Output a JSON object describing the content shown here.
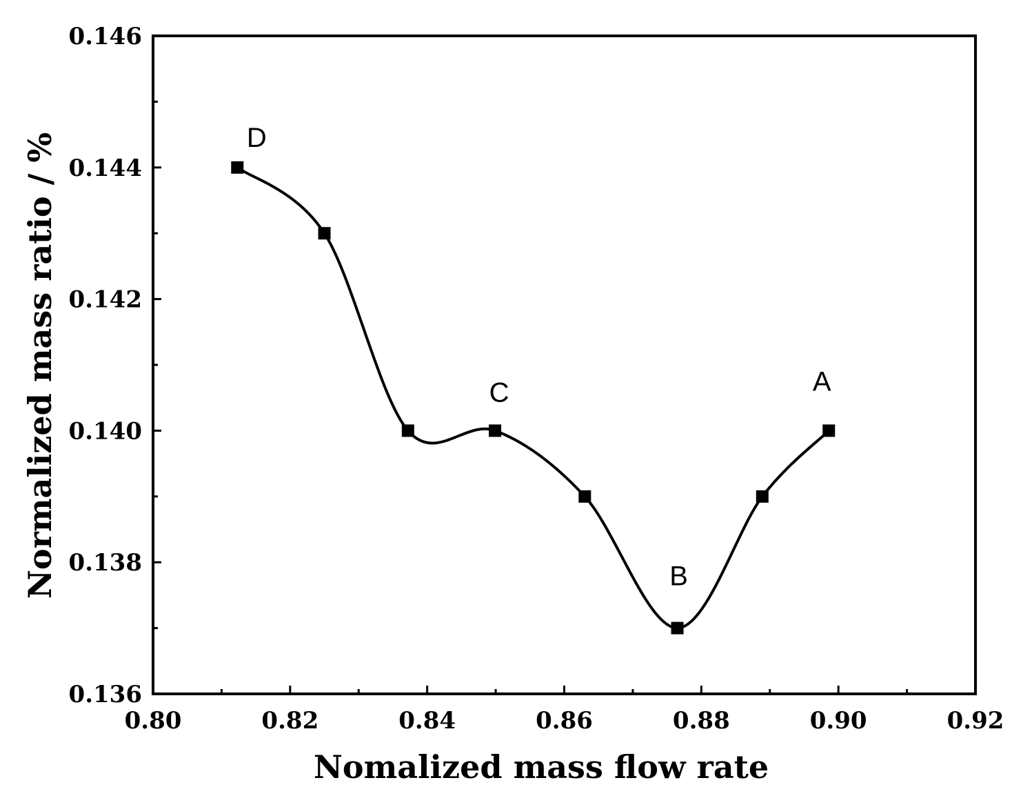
{
  "chart_data": {
    "type": "line",
    "title": "",
    "xlabel": "Nomalized mass flow rate",
    "ylabel": "Normalized mass ratio / %",
    "xlim": [
      0.8,
      0.92
    ],
    "ylim": [
      0.136,
      0.146
    ],
    "x_major_ticks": [
      0.8,
      0.82,
      0.84,
      0.86,
      0.88,
      0.9,
      0.92
    ],
    "x_minor_ticks": [
      0.81,
      0.83,
      0.85,
      0.87,
      0.89,
      0.91
    ],
    "y_major_ticks": [
      0.136,
      0.138,
      0.14,
      0.142,
      0.144,
      0.146
    ],
    "y_minor_ticks": [
      0.137,
      0.139,
      0.141,
      0.143,
      0.145
    ],
    "x_tick_labels": [
      "0.80",
      "0.82",
      "0.84",
      "0.86",
      "0.88",
      "0.90",
      "0.92"
    ],
    "y_tick_labels": [
      "0.136",
      "0.138",
      "0.140",
      "0.142",
      "0.144",
      "0.146"
    ],
    "grid": false,
    "legend": "none",
    "series": [
      {
        "name": "Normalized mass ratio",
        "color": "#000000",
        "marker": "square",
        "x": [
          0.8123,
          0.825,
          0.8372,
          0.8499,
          0.863,
          0.8765,
          0.8889,
          0.8986
        ],
        "y": [
          0.144,
          0.143,
          0.14,
          0.14,
          0.139,
          0.137,
          0.139,
          0.14
        ]
      }
    ],
    "annotations": [
      {
        "text": "D",
        "x": 0.8123,
        "y": 0.144
      },
      {
        "text": "C",
        "x": 0.8499,
        "y": 0.14
      },
      {
        "text": "B",
        "x": 0.8765,
        "y": 0.137
      },
      {
        "text": "A",
        "x": 0.8986,
        "y": 0.14
      }
    ]
  }
}
